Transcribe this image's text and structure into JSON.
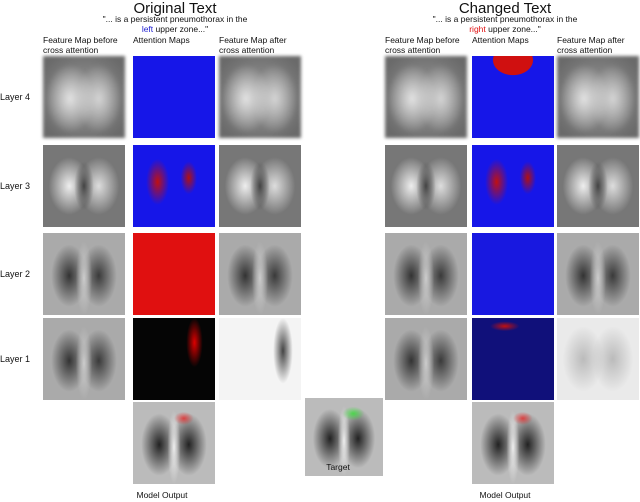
{
  "panels": [
    {
      "title": "Original Text",
      "quote": [
        "\"... is a persistent pneumothorax in the",
        "left",
        "upper zone...\""
      ],
      "columns": [
        "Feature Map before cross attention",
        "Attention Maps",
        "Feature Map after cross attention"
      ]
    },
    {
      "title": "Changed Text",
      "quote": [
        "\"... is a persistent pneumothorax in the",
        "right",
        "upper zone...\""
      ],
      "columns": [
        "Feature Map before cross attention",
        "Attention Maps",
        "Feature Map after cross attention"
      ]
    }
  ],
  "rows": [
    "Layer 4",
    "Layer 3",
    "Layer 2",
    "Layer 1"
  ],
  "outputs": [
    "Model Output",
    "Target",
    "Model Output"
  ]
}
